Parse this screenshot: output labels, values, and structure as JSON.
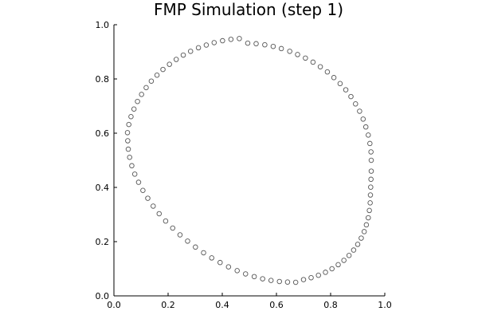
{
  "chart_data": {
    "type": "scatter",
    "title": "FMP Simulation (step 1)",
    "xlabel": "",
    "ylabel": "",
    "xlim": [
      0,
      1
    ],
    "ylim": [
      0,
      1
    ],
    "xticks": [
      0.0,
      0.2,
      0.4,
      0.6,
      0.8,
      1.0
    ],
    "yticks": [
      0.0,
      0.2,
      0.4,
      0.6,
      0.8,
      1.0
    ],
    "xtick_labels": [
      "0.0",
      "0.2",
      "0.4",
      "0.6",
      "0.8",
      "1.0"
    ],
    "ytick_labels": [
      "0.0",
      "0.2",
      "0.4",
      "0.6",
      "0.8",
      "1.0"
    ],
    "grid": false,
    "legend": "none",
    "aspect": "equal",
    "marker": "open-circle",
    "marker_color": "#555555",
    "series": [
      {
        "x": [
          0.95,
          0.949,
          0.945,
          0.939,
          0.93,
          0.92,
          0.907,
          0.892,
          0.875,
          0.856,
          0.835,
          0.812,
          0.788,
          0.762,
          0.735,
          0.707,
          0.678,
          0.649,
          0.618,
          0.588,
          0.557,
          0.525,
          0.494,
          0.463,
          0.432,
          0.401,
          0.37,
          0.341,
          0.312,
          0.283,
          0.256,
          0.23,
          0.205,
          0.181,
          0.159,
          0.138,
          0.119,
          0.102,
          0.087,
          0.074,
          0.063,
          0.055,
          0.05,
          0.051,
          0.053,
          0.058,
          0.066,
          0.077,
          0.091,
          0.107,
          0.125,
          0.145,
          0.167,
          0.191,
          0.217,
          0.244,
          0.272,
          0.301,
          0.331,
          0.361,
          0.392,
          0.423,
          0.455,
          0.486,
          0.518,
          0.549,
          0.58,
          0.611,
          0.641,
          0.671,
          0.7,
          0.728,
          0.755,
          0.781,
          0.805,
          0.828,
          0.849,
          0.868,
          0.885,
          0.9,
          0.913,
          0.924,
          0.932,
          0.939,
          0.943,
          0.946,
          0.947,
          0.948,
          0.949,
          0.95
        ],
        "y": [
          0.5,
          0.531,
          0.562,
          0.593,
          0.623,
          0.652,
          0.681,
          0.708,
          0.735,
          0.76,
          0.783,
          0.805,
          0.826,
          0.845,
          0.862,
          0.877,
          0.89,
          0.902,
          0.912,
          0.92,
          0.926,
          0.93,
          0.932,
          0.949,
          0.946,
          0.941,
          0.934,
          0.925,
          0.915,
          0.902,
          0.888,
          0.872,
          0.854,
          0.835,
          0.814,
          0.792,
          0.768,
          0.743,
          0.717,
          0.689,
          0.661,
          0.632,
          0.602,
          0.572,
          0.541,
          0.511,
          0.48,
          0.449,
          0.419,
          0.389,
          0.36,
          0.331,
          0.303,
          0.276,
          0.25,
          0.225,
          0.202,
          0.18,
          0.159,
          0.14,
          0.123,
          0.107,
          0.093,
          0.081,
          0.071,
          0.063,
          0.057,
          0.053,
          0.051,
          0.05,
          0.06,
          0.067,
          0.076,
          0.087,
          0.1,
          0.115,
          0.131,
          0.149,
          0.169,
          0.19,
          0.213,
          0.237,
          0.262,
          0.288,
          0.315,
          0.343,
          0.372,
          0.401,
          0.43,
          0.46
        ]
      }
    ]
  }
}
